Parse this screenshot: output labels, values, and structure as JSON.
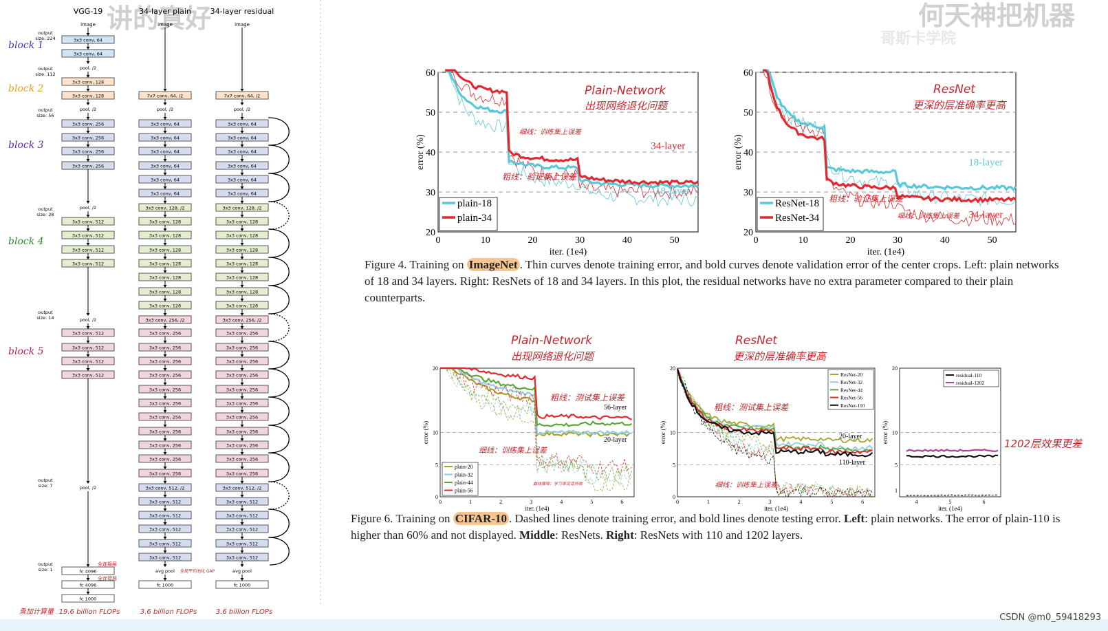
{
  "watermarks": {
    "left": "讲的真好",
    "right": "何天神把机器",
    "sub": "哥斯卡学院"
  },
  "arch": {
    "col_titles": [
      "VGG-19",
      "34-layer plain",
      "34-layer residual"
    ],
    "image_label": "image",
    "blocks": [
      "block 1",
      "block 2",
      "block 3",
      "block 4",
      "block 5"
    ],
    "out_sizes": [
      "output\nsize: 224",
      "output\nsize: 112",
      "output\nsize: 56",
      "output\nsize: 28",
      "output\nsize: 14",
      "output\nsize: 7",
      "output\nsize: 1"
    ],
    "vgg": [
      "3x3 conv, 64",
      "3x3 conv, 64",
      "pool, /2",
      "3x3 conv, 128",
      "3x3 conv, 128",
      "pool, /2",
      "3x3 conv, 256",
      "3x3 conv, 256",
      "3x3 conv, 256",
      "3x3 conv, 256",
      "pool, /2",
      "3x3 conv, 512",
      "3x3 conv, 512",
      "3x3 conv, 512",
      "3x3 conv, 512",
      "pool, /2",
      "3x3 conv, 512",
      "3x3 conv, 512",
      "3x3 conv, 512",
      "3x3 conv, 512",
      "pool, /2",
      "fc 4096",
      "fc 4096",
      "fc 1000"
    ],
    "plain": [
      "7x7 conv, 64, /2",
      "pool, /2",
      "3x3 conv, 64",
      "3x3 conv, 64",
      "3x3 conv, 64",
      "3x3 conv, 64",
      "3x3 conv, 64",
      "3x3 conv, 64",
      "3x3 conv, 128, /2",
      "3x3 conv, 128",
      "3x3 conv, 128",
      "3x3 conv, 128",
      "3x3 conv, 128",
      "3x3 conv, 128",
      "3x3 conv, 128",
      "3x3 conv, 128",
      "3x3 conv, 256, /2",
      "3x3 conv, 256",
      "3x3 conv, 256",
      "3x3 conv, 256",
      "3x3 conv, 256",
      "3x3 conv, 256",
      "3x3 conv, 256",
      "3x3 conv, 256",
      "3x3 conv, 256",
      "3x3 conv, 256",
      "3x3 conv, 256",
      "3x3 conv, 256",
      "3x3 conv, 512, /2",
      "3x3 conv, 512",
      "3x3 conv, 512",
      "3x3 conv, 512",
      "3x3 conv, 512",
      "3x3 conv, 512",
      "avg pool",
      "fc 1000"
    ],
    "flops": [
      "19.6 billion FLOPs",
      "3.6 billion FLOPs",
      "3.6 billion FLOPs"
    ],
    "flops_label": "乘加计算量",
    "fc_note": "全连接层",
    "avg_note": "全局平均池化 GAP"
  },
  "fig4": {
    "caption_pre": "Figure 4. Training on ",
    "caption_hl": "ImageNet",
    "caption_post": ". Thin curves denote training error, and bold curves denote validation error of the center crops. Left: plain networks of 18 and 34 layers. Right: ResNets of 18 and 34 layers. In this plot, the residual networks have no extra parameter compared to their plain counterparts.",
    "notes_left": [
      "Plain-Network",
      "出现网络退化问题",
      "细线：训练集上误差",
      "粗线：验证集上误差"
    ],
    "notes_right": [
      "ResNet",
      "更深的层准确率更高",
      "粗线：验证集上误差",
      "细线：训练集上误差"
    ],
    "legend_left": [
      "plain-18",
      "plain-34"
    ],
    "legend_right": [
      "ResNet-18",
      "ResNet-34"
    ],
    "label_34": "34-layer",
    "label_18": "18-layer",
    "xlabel": "iter. (1e4)",
    "ylabel": "error (%)",
    "xticks": [
      "0",
      "10",
      "20",
      "30",
      "40",
      "50"
    ],
    "yticks": [
      "20",
      "30",
      "40",
      "50",
      "60"
    ]
  },
  "fig6": {
    "caption_pre": "Figure 6. Training on ",
    "caption_hl": "CIFAR-10",
    "caption_mid1": ". Dashed lines denote training error, and bold lines denote testing error. ",
    "b_left": "Left",
    "caption_mid2": ": plain networks. The error of plain-110 is higher than 60% and not displayed. ",
    "b_middle": "Middle",
    "caption_mid3": ": ResNets. ",
    "b_right": "Right",
    "caption_post": ": ResNets with 110 and 1202 layers.",
    "notes_left": [
      "Plain-Network",
      "出现网络退化问题",
      "粗线：测试集上误差",
      "细线：训练集上误差",
      "曲线骤降：学习率突变所致"
    ],
    "notes_mid": [
      "ResNet",
      "更深的层准确率更高",
      "粗线：测试集上误差",
      "细线：训练集上误差"
    ],
    "note_right": "1202层效果更差",
    "legend_left": [
      "plain-20",
      "plain-32",
      "plain-44",
      "plain-56"
    ],
    "legend_mid": [
      "ResNet-20",
      "ResNet-32",
      "ResNet-44",
      "ResNet-56",
      "ResNet-110"
    ],
    "legend_right": [
      "residual-110",
      "residual-1202"
    ],
    "lab_56": "56-layer",
    "lab_20": "20-layer",
    "lab_20b": "20-layer",
    "lab_110": "110-layer",
    "xlabel": "iter. (1e4)",
    "ylabel": "error (%)",
    "xticks": [
      "0",
      "1",
      "2",
      "3",
      "4",
      "5",
      "6"
    ],
    "xticks_r": [
      "4",
      "5",
      "6"
    ],
    "yticks": [
      "0",
      "5",
      "10",
      "20"
    ],
    "yticks_r": [
      "1",
      "5",
      "10",
      "20"
    ]
  },
  "colors": {
    "cyan": "#5bc8d8",
    "red": "#e0282e",
    "olive": "#a6a32a",
    "lightblue": "#8fcde0",
    "green": "#5aa83a",
    "black": "#111111",
    "magenta": "#b0409e",
    "orange_hl": "#f6c58f"
  },
  "footer": "CSDN @m0_59418293"
}
